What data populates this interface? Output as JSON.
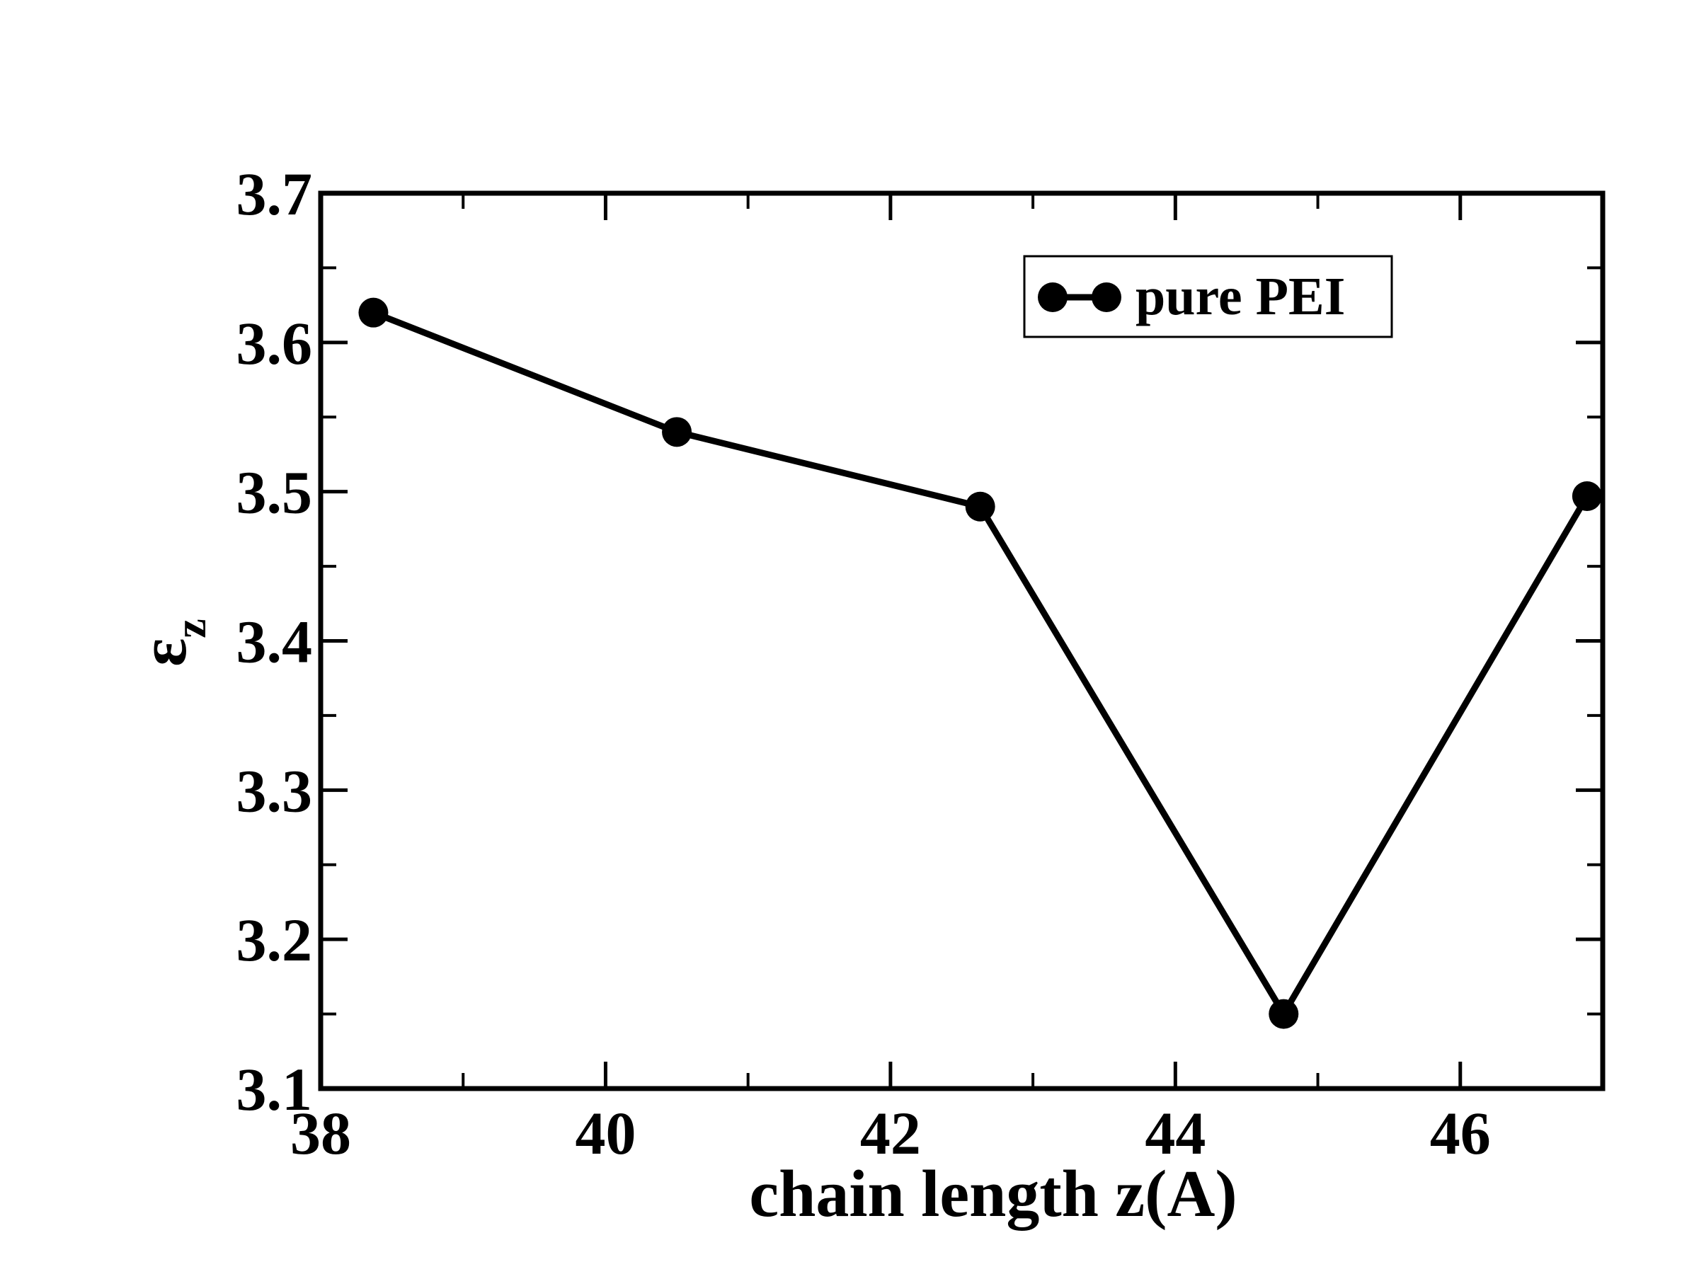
{
  "chart_data": {
    "type": "line",
    "title": "",
    "xlabel": "chain length z(A)",
    "ylabel": "ε",
    "ylabel_sub": "z",
    "xlim": [
      38,
      47
    ],
    "ylim": [
      3.1,
      3.7
    ],
    "x_ticks": [
      38,
      40,
      42,
      44,
      46
    ],
    "x_tick_labels": [
      "38",
      "40",
      "42",
      "44",
      "46"
    ],
    "y_ticks": [
      3.1,
      3.2,
      3.3,
      3.4,
      3.5,
      3.6,
      3.7
    ],
    "y_tick_labels": [
      "3.1",
      "3.2",
      "3.3",
      "3.4",
      "3.5",
      "3.6",
      "3.7"
    ],
    "grid": false,
    "legend": {
      "position": "top-right"
    },
    "series": [
      {
        "name": "pure PEI",
        "color": "#000000",
        "marker": "circle",
        "x": [
          38.37,
          40.5,
          42.63,
          44.76,
          46.89
        ],
        "y": [
          3.62,
          3.54,
          3.49,
          3.15,
          3.497
        ]
      }
    ]
  }
}
